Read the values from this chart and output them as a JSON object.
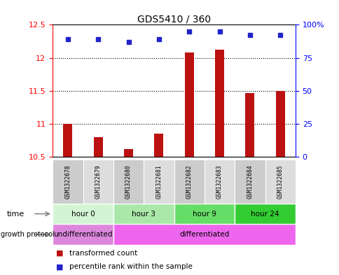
{
  "title": "GDS5410 / 360",
  "samples": [
    "GSM1322678",
    "GSM1322679",
    "GSM1322680",
    "GSM1322681",
    "GSM1322682",
    "GSM1322683",
    "GSM1322684",
    "GSM1322685"
  ],
  "bar_values": [
    11.0,
    10.8,
    10.62,
    10.85,
    12.08,
    12.12,
    11.47,
    11.5
  ],
  "percentile_values": [
    89,
    89,
    87,
    89,
    95,
    95,
    92,
    92
  ],
  "ylim_left": [
    10.5,
    12.5
  ],
  "ylim_right": [
    0,
    100
  ],
  "yticks_left": [
    10.5,
    11.0,
    11.5,
    12.0,
    12.5
  ],
  "ytick_labels_left": [
    "10.5",
    "11",
    "11.5",
    "12",
    "12.5"
  ],
  "yticks_right": [
    0,
    25,
    50,
    75,
    100
  ],
  "ytick_labels_right": [
    "0",
    "25",
    "50",
    "75",
    "100%"
  ],
  "bar_color": "#bb1111",
  "dot_color": "#2222cc",
  "time_groups": [
    {
      "label": "hour 0",
      "start": 0,
      "end": 2,
      "color": "#d4f5d4"
    },
    {
      "label": "hour 3",
      "start": 2,
      "end": 4,
      "color": "#aae8aa"
    },
    {
      "label": "hour 9",
      "start": 4,
      "end": 6,
      "color": "#66dd66"
    },
    {
      "label": "hour 24",
      "start": 6,
      "end": 8,
      "color": "#33cc33"
    }
  ],
  "protocol_groups": [
    {
      "label": "undifferentiated",
      "start": 0,
      "end": 2,
      "color": "#dd88dd"
    },
    {
      "label": "differentiated",
      "start": 2,
      "end": 8,
      "color": "#ee66ee"
    }
  ],
  "legend_items": [
    {
      "label": "transformed count",
      "color": "#bb1111"
    },
    {
      "label": "percentile rank within the sample",
      "color": "#2222cc"
    }
  ],
  "xlabel_time": "time",
  "xlabel_protocol": "growth protocol"
}
